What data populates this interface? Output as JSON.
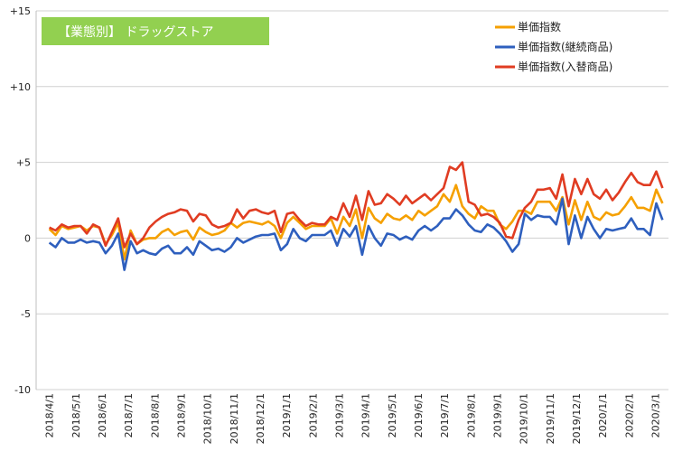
{
  "chart_data": {
    "type": "line",
    "title": "【業態別】 ドラッグストア",
    "title_bg_color": "#92D050",
    "ylim": [
      -10,
      15
    ],
    "y_ticks": [
      -10,
      -5,
      0,
      5,
      10,
      15
    ],
    "y_tick_labels": [
      "-10",
      "-5",
      "0",
      "+5",
      "+10",
      "+15"
    ],
    "x_tick_labels": [
      "2018/4/1",
      "2018/5/1",
      "2018/6/1",
      "2018/7/1",
      "2018/8/1",
      "2018/9/1",
      "2018/10/1",
      "2018/11/1",
      "2018/12/1",
      "2019/1/1",
      "2019/2/1",
      "2019/3/1",
      "2019/4/1",
      "2019/5/1",
      "2019/6/1",
      "2019/7/1",
      "2019/8/1",
      "2019/9/1",
      "2019/10/1",
      "2019/11/1",
      "2019/12/1",
      "2020/1/1",
      "2020/2/1",
      "2020/3/1"
    ],
    "legend_position": "top-right",
    "grid": "horizontal",
    "series": [
      {
        "name": "単価指数",
        "color": "#F5A000",
        "values": [
          0.6,
          0.2,
          0.8,
          0.6,
          0.7,
          0.8,
          0.5,
          0.8,
          0.7,
          -0.4,
          0.2,
          1.0,
          -1.4,
          0.5,
          -0.4,
          -0.1,
          0.0,
          0.0,
          0.4,
          0.6,
          0.2,
          0.4,
          0.5,
          -0.1,
          0.7,
          0.4,
          0.2,
          0.3,
          0.5,
          1.0,
          0.7,
          1.0,
          1.1,
          1.0,
          0.9,
          1.1,
          0.8,
          0.0,
          1.0,
          1.4,
          1.0,
          0.6,
          0.8,
          0.8,
          0.8,
          1.3,
          0.3,
          1.4,
          0.8,
          1.9,
          0.0,
          2.0,
          1.3,
          1.0,
          1.6,
          1.3,
          1.2,
          1.5,
          1.2,
          1.8,
          1.5,
          1.8,
          2.1,
          2.9,
          2.4,
          3.5,
          2.1,
          1.6,
          1.3,
          2.1,
          1.8,
          1.8,
          0.9,
          0.6,
          1.1,
          1.8,
          1.8,
          1.6,
          2.4,
          2.4,
          2.4,
          1.8,
          2.7,
          0.9,
          2.5,
          1.2,
          2.4,
          1.4,
          1.2,
          1.7,
          1.5,
          1.6,
          2.1,
          2.7,
          2.0,
          2.0,
          1.8,
          3.2,
          2.3
        ]
      },
      {
        "name": "単価指数(継続商品)",
        "color": "#2E5FBE",
        "values": [
          -0.3,
          -0.6,
          0.0,
          -0.3,
          -0.3,
          -0.1,
          -0.3,
          -0.2,
          -0.3,
          -1.0,
          -0.5,
          0.3,
          -2.1,
          -0.2,
          -1.0,
          -0.8,
          -1.0,
          -1.1,
          -0.7,
          -0.5,
          -1.0,
          -1.0,
          -0.6,
          -1.1,
          -0.2,
          -0.5,
          -0.8,
          -0.7,
          -0.9,
          -0.6,
          0.0,
          -0.3,
          -0.1,
          0.1,
          0.2,
          0.2,
          0.3,
          -0.8,
          -0.4,
          0.6,
          0.0,
          -0.2,
          0.2,
          0.2,
          0.2,
          0.5,
          -0.5,
          0.6,
          0.1,
          0.8,
          -1.1,
          0.8,
          0.0,
          -0.5,
          0.3,
          0.2,
          -0.1,
          0.1,
          -0.1,
          0.5,
          0.8,
          0.5,
          0.8,
          1.3,
          1.3,
          1.9,
          1.5,
          0.9,
          0.5,
          0.4,
          0.9,
          0.7,
          0.3,
          -0.2,
          -0.9,
          -0.4,
          1.6,
          1.2,
          1.5,
          1.4,
          1.4,
          0.9,
          2.6,
          -0.4,
          1.5,
          0.0,
          1.4,
          0.6,
          0.0,
          0.6,
          0.5,
          0.6,
          0.7,
          1.3,
          0.6,
          0.6,
          0.2,
          2.3,
          1.2
        ]
      },
      {
        "name": "単価指数(入替商品)",
        "color": "#E03C22",
        "values": [
          0.7,
          0.5,
          0.9,
          0.7,
          0.8,
          0.8,
          0.3,
          0.9,
          0.7,
          -0.5,
          0.4,
          1.3,
          -0.6,
          0.3,
          -0.4,
          0.0,
          0.7,
          1.1,
          1.4,
          1.6,
          1.7,
          1.9,
          1.8,
          1.1,
          1.6,
          1.5,
          0.9,
          0.7,
          0.8,
          1.0,
          1.9,
          1.3,
          1.8,
          1.9,
          1.7,
          1.6,
          1.8,
          0.4,
          1.6,
          1.7,
          1.2,
          0.8,
          1.0,
          0.9,
          0.9,
          1.4,
          1.2,
          2.3,
          1.4,
          2.8,
          1.2,
          3.1,
          2.2,
          2.3,
          2.9,
          2.6,
          2.2,
          2.8,
          2.3,
          2.6,
          2.9,
          2.5,
          2.9,
          3.3,
          4.7,
          4.5,
          5.0,
          2.4,
          2.2,
          1.5,
          1.6,
          1.4,
          1.0,
          0.1,
          0.0,
          1.2,
          2.0,
          2.4,
          3.2,
          3.2,
          3.3,
          2.6,
          4.2,
          2.1,
          3.9,
          2.9,
          3.9,
          2.9,
          2.6,
          3.2,
          2.5,
          3.0,
          3.7,
          4.3,
          3.7,
          3.5,
          3.5,
          4.4,
          3.3
        ]
      }
    ]
  }
}
